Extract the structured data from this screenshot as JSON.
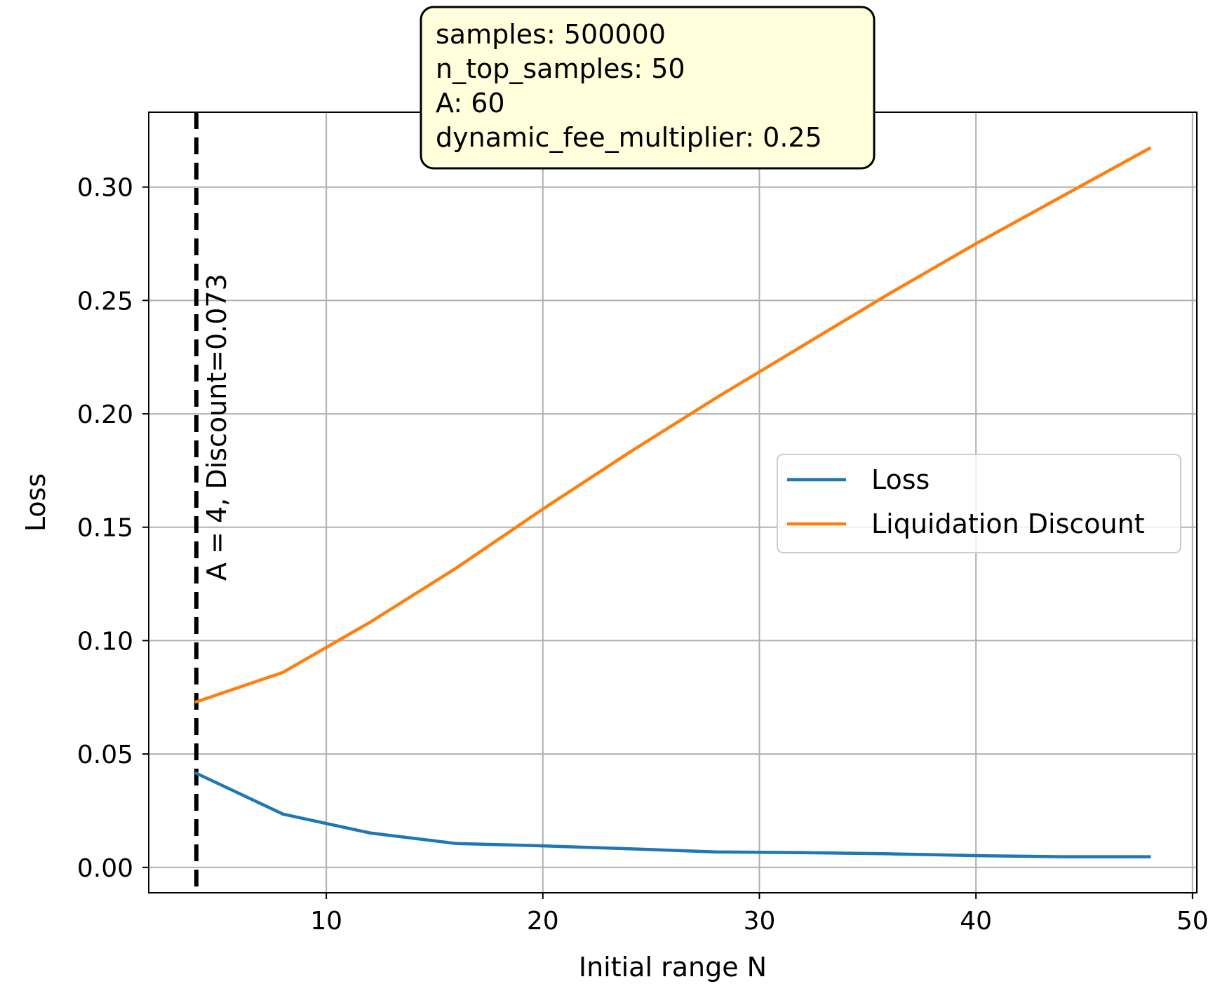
{
  "chart_data": {
    "type": "line",
    "xlabel": "Initial range N",
    "ylabel": "Loss",
    "xlim": [
      1.8,
      50.2
    ],
    "ylim": [
      -0.0112,
      0.333
    ],
    "grid": true,
    "x_ticks": [
      10,
      20,
      30,
      40,
      50
    ],
    "x_tick_labels": [
      "10",
      "20",
      "30",
      "40",
      "50"
    ],
    "y_ticks": [
      0.0,
      0.05,
      0.1,
      0.15,
      0.2,
      0.25,
      0.3
    ],
    "y_tick_labels": [
      "0.00",
      "0.05",
      "0.10",
      "0.15",
      "0.20",
      "0.25",
      "0.30"
    ],
    "x": [
      4,
      8,
      12,
      16,
      20,
      24,
      28,
      32,
      36,
      40,
      44,
      48
    ],
    "series": [
      {
        "name": "Loss",
        "color": "#1f77b4",
        "values": [
          0.0415,
          0.0235,
          0.0152,
          0.0105,
          0.0095,
          0.0082,
          0.0068,
          0.0065,
          0.006,
          0.0052,
          0.0047,
          0.0047
        ]
      },
      {
        "name": "Liquidation Discount",
        "color": "#ff7f0e",
        "values": [
          0.073,
          0.086,
          0.108,
          0.132,
          0.158,
          0.183,
          0.207,
          0.23,
          0.253,
          0.275,
          0.296,
          0.317
        ]
      }
    ],
    "vline": {
      "x": 4,
      "style": "dashed",
      "color": "#000000",
      "label": "A = 4, Discount=0.073"
    },
    "legend": {
      "placement": "center-right",
      "entries": [
        "Loss",
        "Liquidation Discount"
      ]
    },
    "info_box": {
      "placement": "top-center",
      "background": "#ffffdc",
      "lines": [
        "samples: 500000",
        "n_top_samples: 50",
        "A: 60",
        "dynamic_fee_multiplier: 0.25"
      ]
    }
  }
}
